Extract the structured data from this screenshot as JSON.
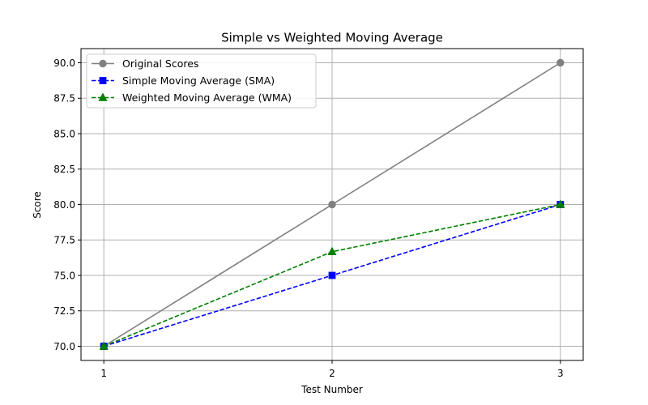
{
  "chart_data": {
    "type": "line",
    "title": "Simple vs Weighted Moving Average",
    "xlabel": "Test Number",
    "ylabel": "Score",
    "x": [
      1,
      2,
      3
    ],
    "xticks": [
      "1",
      "2",
      "3"
    ],
    "yticks": [
      "70.0",
      "72.5",
      "75.0",
      "77.5",
      "80.0",
      "82.5",
      "85.0",
      "87.5",
      "90.0"
    ],
    "xlim": [
      0.9,
      3.1
    ],
    "ylim": [
      69.0,
      91.0
    ],
    "grid": true,
    "legend_position": "top-left",
    "series": [
      {
        "name": "Original Scores",
        "values": [
          70,
          80,
          90
        ],
        "color": "#808080",
        "linestyle": "solid",
        "marker": "circle"
      },
      {
        "name": "Simple Moving Average (SMA)",
        "values": [
          70,
          75,
          80
        ],
        "color": "#0000ff",
        "linestyle": "dashed",
        "marker": "square"
      },
      {
        "name": "Weighted Moving Average (WMA)",
        "values": [
          70,
          76.67,
          80
        ],
        "color": "#008000",
        "linestyle": "dashed",
        "marker": "triangle"
      }
    ]
  }
}
